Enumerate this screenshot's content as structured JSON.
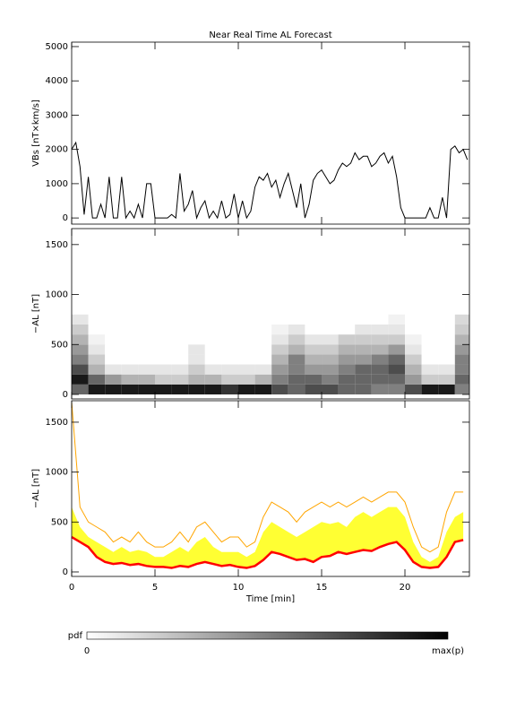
{
  "chart_data": [
    {
      "type": "line",
      "title": "Near Real Time AL Forecast",
      "ylabel": "VBs [nT×km/s]",
      "xlim": [
        0,
        23.87
      ],
      "ylim": [
        -180,
        5130
      ],
      "yticks": [
        0,
        1000,
        2000,
        3000,
        4000,
        5000
      ],
      "x": [
        0,
        0.25,
        0.5,
        0.75,
        1,
        1.25,
        1.5,
        1.75,
        2,
        2.25,
        2.5,
        2.75,
        3,
        3.25,
        3.5,
        3.75,
        4,
        4.25,
        4.5,
        4.75,
        5,
        5.25,
        5.5,
        5.75,
        6,
        6.25,
        6.5,
        6.75,
        7,
        7.25,
        7.5,
        7.75,
        8,
        8.25,
        8.5,
        8.75,
        9,
        9.25,
        9.5,
        9.75,
        10,
        10.25,
        10.5,
        10.75,
        11,
        11.25,
        11.5,
        11.75,
        12,
        12.25,
        12.5,
        12.75,
        13,
        13.25,
        13.5,
        13.75,
        14,
        14.25,
        14.5,
        14.75,
        15,
        15.25,
        15.5,
        15.75,
        16,
        16.25,
        16.5,
        16.75,
        17,
        17.25,
        17.5,
        17.75,
        18,
        18.25,
        18.5,
        18.75,
        19,
        19.25,
        19.5,
        19.75,
        20,
        20.25,
        20.5,
        20.75,
        21,
        21.25,
        21.5,
        21.75,
        22,
        22.25,
        22.5,
        22.75,
        23,
        23.25,
        23.5,
        23.75
      ],
      "series": [
        {
          "color": "#000000",
          "values": [
            2000,
            2200,
            1500,
            100,
            1200,
            0,
            0,
            400,
            0,
            1200,
            0,
            0,
            1200,
            0,
            200,
            0,
            400,
            0,
            1000,
            1000,
            0,
            0,
            0,
            0,
            100,
            0,
            1300,
            200,
            400,
            800,
            0,
            300,
            500,
            0,
            200,
            0,
            500,
            0,
            100,
            700,
            0,
            500,
            0,
            200,
            900,
            1200,
            1100,
            1300,
            900,
            1100,
            600,
            1000,
            1300,
            800,
            300,
            1000,
            0,
            400,
            1100,
            1300,
            1400,
            1200,
            1000,
            1100,
            1400,
            1600,
            1500,
            1600,
            1900,
            1700,
            1800,
            1800,
            1500,
            1600,
            1800,
            1900,
            1600,
            1800,
            1200,
            300,
            0,
            0,
            0,
            0,
            0,
            0,
            300,
            0,
            0,
            600,
            0,
            2000,
            2100,
            1900,
            2000,
            1700
          ]
        }
      ]
    },
    {
      "type": "heatmap",
      "ylabel": "−AL [nT]",
      "xlim": [
        0,
        23.87
      ],
      "ylim": [
        -45,
        1660
      ],
      "yticks": [
        0,
        500,
        1000,
        1500
      ],
      "xbins": [
        0,
        1,
        2,
        3,
        4,
        5,
        6,
        7,
        8,
        9,
        10,
        11,
        12,
        13,
        14,
        15,
        16,
        17,
        18,
        19,
        20,
        21,
        22,
        23,
        24
      ],
      "ybins": [
        0,
        100,
        200,
        300,
        400,
        500,
        600,
        700,
        800
      ],
      "z": [
        [
          0.6,
          0.9,
          0.9,
          0.9,
          0.9,
          0.9,
          0.9,
          0.9,
          0.9,
          0.8,
          0.9,
          0.9,
          0.7,
          0.6,
          0.7,
          0.7,
          0.6,
          0.6,
          0.5,
          0.5,
          0.7,
          0.9,
          0.9,
          0.5
        ],
        [
          0.9,
          0.6,
          0.4,
          0.3,
          0.3,
          0.2,
          0.2,
          0.3,
          0.3,
          0.2,
          0.2,
          0.3,
          0.5,
          0.6,
          0.6,
          0.5,
          0.6,
          0.6,
          0.6,
          0.6,
          0.4,
          0.2,
          0.2,
          0.6
        ],
        [
          0.7,
          0.3,
          0.1,
          0.1,
          0.1,
          0.1,
          0.1,
          0.2,
          0.1,
          0.1,
          0.1,
          0.1,
          0.4,
          0.5,
          0.4,
          0.4,
          0.5,
          0.6,
          0.6,
          0.7,
          0.3,
          0.1,
          0.1,
          0.5
        ],
        [
          0.5,
          0.2,
          0,
          0,
          0,
          0,
          0,
          0.1,
          0,
          0,
          0,
          0,
          0.3,
          0.5,
          0.3,
          0.3,
          0.4,
          0.4,
          0.5,
          0.6,
          0.2,
          0,
          0,
          0.5
        ],
        [
          0.4,
          0.1,
          0,
          0,
          0,
          0,
          0,
          0.1,
          0,
          0,
          0,
          0,
          0.2,
          0.3,
          0.2,
          0.2,
          0.3,
          0.3,
          0.3,
          0.4,
          0.1,
          0,
          0,
          0.4
        ],
        [
          0.3,
          0.05,
          0,
          0,
          0,
          0,
          0,
          0,
          0,
          0,
          0,
          0,
          0.1,
          0.2,
          0.1,
          0.1,
          0.2,
          0.2,
          0.2,
          0.2,
          0.05,
          0,
          0,
          0.3
        ],
        [
          0.2,
          0,
          0,
          0,
          0,
          0,
          0,
          0,
          0,
          0,
          0,
          0,
          0.05,
          0.1,
          0,
          0,
          0,
          0.1,
          0.1,
          0.1,
          0,
          0,
          0,
          0.2
        ],
        [
          0.1,
          0,
          0,
          0,
          0,
          0,
          0,
          0,
          0,
          0,
          0,
          0,
          0,
          0,
          0,
          0,
          0,
          0,
          0,
          0.05,
          0,
          0,
          0,
          0.15
        ]
      ],
      "colorbar": {
        "label": "pdf",
        "min_label": "0",
        "max_label": "max(p)"
      }
    },
    {
      "type": "line",
      "ylabel": "−AL [nT]",
      "xlabel": "Time [min]",
      "xlim": [
        0,
        23.87
      ],
      "ylim": [
        -45,
        1715
      ],
      "yticks": [
        0,
        500,
        1000,
        1500
      ],
      "xticks": [
        0,
        5,
        10,
        15,
        20
      ],
      "x": [
        0,
        0.5,
        1,
        1.5,
        2,
        2.5,
        3,
        3.5,
        4,
        4.5,
        5,
        5.5,
        6,
        6.5,
        7,
        7.5,
        8,
        8.5,
        9,
        9.5,
        10,
        10.5,
        11,
        11.5,
        12,
        12.5,
        13,
        13.5,
        14,
        14.5,
        15,
        15.5,
        16,
        16.5,
        17,
        17.5,
        18,
        18.5,
        19,
        19.5,
        20,
        20.5,
        21,
        21.5,
        22,
        22.5,
        23,
        23.5
      ],
      "series": [
        {
          "color": "#ffa500",
          "values": [
            1700,
            650,
            500,
            450,
            400,
            300,
            350,
            300,
            400,
            300,
            250,
            250,
            300,
            400,
            300,
            450,
            500,
            400,
            300,
            350,
            350,
            250,
            300,
            550,
            700,
            650,
            600,
            500,
            600,
            650,
            700,
            650,
            700,
            650,
            700,
            750,
            700,
            750,
            800,
            800,
            700,
            450,
            250,
            200,
            250,
            600,
            800,
            800
          ]
        },
        {
          "color": "#ffff33",
          "fill": true,
          "values": [
            650,
            450,
            350,
            300,
            250,
            200,
            250,
            200,
            220,
            200,
            150,
            150,
            200,
            250,
            200,
            300,
            350,
            250,
            200,
            200,
            200,
            150,
            200,
            400,
            500,
            450,
            400,
            350,
            400,
            450,
            500,
            480,
            500,
            450,
            550,
            600,
            550,
            600,
            650,
            650,
            550,
            300,
            150,
            100,
            150,
            400,
            550,
            600
          ]
        },
        {
          "color": "#ff0000",
          "values": [
            350,
            300,
            250,
            150,
            100,
            80,
            90,
            70,
            80,
            60,
            50,
            50,
            40,
            60,
            50,
            80,
            100,
            80,
            60,
            70,
            50,
            40,
            60,
            120,
            200,
            180,
            150,
            120,
            130,
            100,
            150,
            160,
            200,
            180,
            200,
            220,
            210,
            250,
            280,
            300,
            220,
            100,
            50,
            40,
            50,
            150,
            300,
            320
          ]
        }
      ]
    }
  ]
}
